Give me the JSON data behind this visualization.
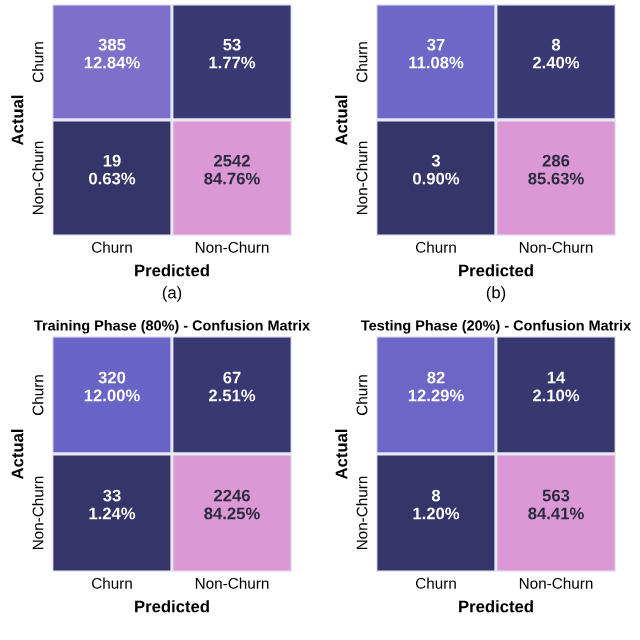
{
  "chart_data": [
    {
      "type": "heatmap",
      "xlabel": "Predicted",
      "ylabel": "Actual",
      "categories": [
        "Churn",
        "Non-Churn"
      ],
      "y_categories": [
        "Churn",
        "Non-Churn"
      ],
      "cells": [
        [
          385,
          53
        ],
        [
          19,
          2542
        ]
      ],
      "data_labels": true,
      "colors": [
        "#35356a",
        "#3a3a76",
        "#6060c4",
        "#9e80d2",
        "#dc98d4"
      ],
      "annotations": [
        "12.84%",
        "1.77%",
        "0.63%",
        "84.76%",
        "(a)"
      ]
    },
    {
      "type": "heatmap",
      "xlabel": "Predicted",
      "ylabel": "Actual",
      "categories": [
        "Churn",
        "Non-Churn"
      ],
      "y_categories": [
        "Churn",
        "Non-Churn"
      ],
      "cells": [
        [
          37,
          8
        ],
        [
          3,
          286
        ]
      ],
      "data_labels": true,
      "colors": [
        "#35356a",
        "#3a3a76",
        "#6060c4",
        "#9e80d2",
        "#dc98d4"
      ],
      "annotations": [
        "11.08%",
        "2.40%",
        "0.90%",
        "85.63%",
        "(b)"
      ]
    },
    {
      "type": "heatmap",
      "title": "Training Phase (80%) - Confusion Matrix",
      "xlabel": "Predicted",
      "ylabel": "Actual",
      "categories": [
        "Churn",
        "Non-Churn"
      ],
      "y_categories": [
        "Churn",
        "Non-Churn"
      ],
      "cells": [
        [
          320,
          67
        ],
        [
          33,
          2246
        ]
      ],
      "data_labels": true,
      "colors": [
        "#35356a",
        "#3a3a76",
        "#6060c4",
        "#9e80d2",
        "#dc98d4"
      ],
      "annotations": [
        "12.00%",
        "2.51%",
        "1.24%",
        "84.25%"
      ]
    },
    {
      "type": "heatmap",
      "title": "Testing Phase (20%) - Confusion Matrix",
      "xlabel": "Predicted",
      "ylabel": "Actual",
      "categories": [
        "Churn",
        "Non-Churn"
      ],
      "y_categories": [
        "Churn",
        "Non-Churn"
      ],
      "cells": [
        [
          82,
          14
        ],
        [
          8,
          563
        ]
      ],
      "data_labels": true,
      "colors": [
        "#35356a",
        "#3a3a76",
        "#6060c4",
        "#9e80d2",
        "#dc98d4"
      ],
      "annotations": [
        "12.29%",
        "2.10%",
        "1.20%",
        "84.41%"
      ]
    }
  ]
}
